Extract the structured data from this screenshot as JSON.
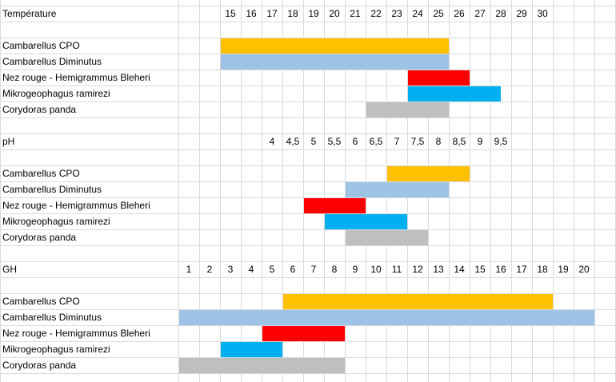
{
  "colors": {
    "grid": "#d9d9d9",
    "cambarellus_cpo": "#ffc000",
    "cambarellus_diminutus": "#9dc3e6",
    "nez_rouge": "#ff0000",
    "mikrogeophagus": "#00b0f0",
    "corydoras": "#bfbfbf"
  },
  "sections": [
    {
      "id": "temperature",
      "header": "Température",
      "ticks": [
        "15",
        "16",
        "17",
        "18",
        "19",
        "20",
        "21",
        "22",
        "23",
        "24",
        "25",
        "26",
        "27",
        "28",
        "29",
        "30"
      ],
      "tick_start_col": 0,
      "rows": [
        {
          "label": "Cambarellus CPO",
          "color_key": "cambarellus_cpo",
          "from": "15",
          "to": "25"
        },
        {
          "label": "Cambarellus Diminutus",
          "color_key": "cambarellus_diminutus",
          "from": "15",
          "to": "25"
        },
        {
          "label": "Nez rouge - Hemigrammus Bleheri",
          "color_key": "nez_rouge",
          "from": "24",
          "to": "26"
        },
        {
          "label": "Mikrogeophagus ramirezi",
          "color_key": "mikrogeophagus",
          "from": "24",
          "to": "27.5"
        },
        {
          "label": "Corydoras panda",
          "color_key": "corydoras",
          "from": "22",
          "to": "25"
        }
      ]
    },
    {
      "id": "ph",
      "header": "pH",
      "ticks": [
        "4",
        "4,5",
        "5",
        "5,5",
        "6",
        "6,5",
        "7",
        "7,5",
        "8",
        "8,5",
        "9",
        "9,5"
      ],
      "rows": [
        {
          "label": "Cambarellus CPO",
          "color_key": "cambarellus_cpo",
          "from": "7",
          "to": "8.5"
        },
        {
          "label": "Cambarellus Diminutus",
          "color_key": "cambarellus_diminutus",
          "from": "6",
          "to": "8"
        },
        {
          "label": "Nez rouge - Hemigrammus Bleheri",
          "color_key": "nez_rouge",
          "from": "5",
          "to": "6"
        },
        {
          "label": "Mikrogeophagus ramirezi",
          "color_key": "mikrogeophagus",
          "from": "5.5",
          "to": "7"
        },
        {
          "label": "Corydoras panda",
          "color_key": "corydoras",
          "from": "6",
          "to": "7.5"
        }
      ]
    },
    {
      "id": "gh",
      "header": "GH",
      "ticks": [
        "1",
        "2",
        "3",
        "4",
        "5",
        "6",
        "7",
        "8",
        "9",
        "10",
        "11",
        "12",
        "13",
        "14",
        "15",
        "16",
        "17",
        "18",
        "19",
        "20"
      ],
      "rows": [
        {
          "label": "Cambarellus CPO",
          "color_key": "cambarellus_cpo",
          "from": "6",
          "to": "18"
        },
        {
          "label": "Cambarellus Diminutus",
          "color_key": "cambarellus_diminutus",
          "from": "1",
          "to": "20"
        },
        {
          "label": "Nez rouge - Hemigrammus Bleheri",
          "color_key": "nez_rouge",
          "from": "5",
          "to": "8"
        },
        {
          "label": "Mikrogeophagus ramirezi",
          "color_key": "mikrogeophagus",
          "from": "3",
          "to": "5"
        },
        {
          "label": "Corydoras panda",
          "color_key": "corydoras",
          "from": "1",
          "to": "8"
        }
      ]
    }
  ]
}
